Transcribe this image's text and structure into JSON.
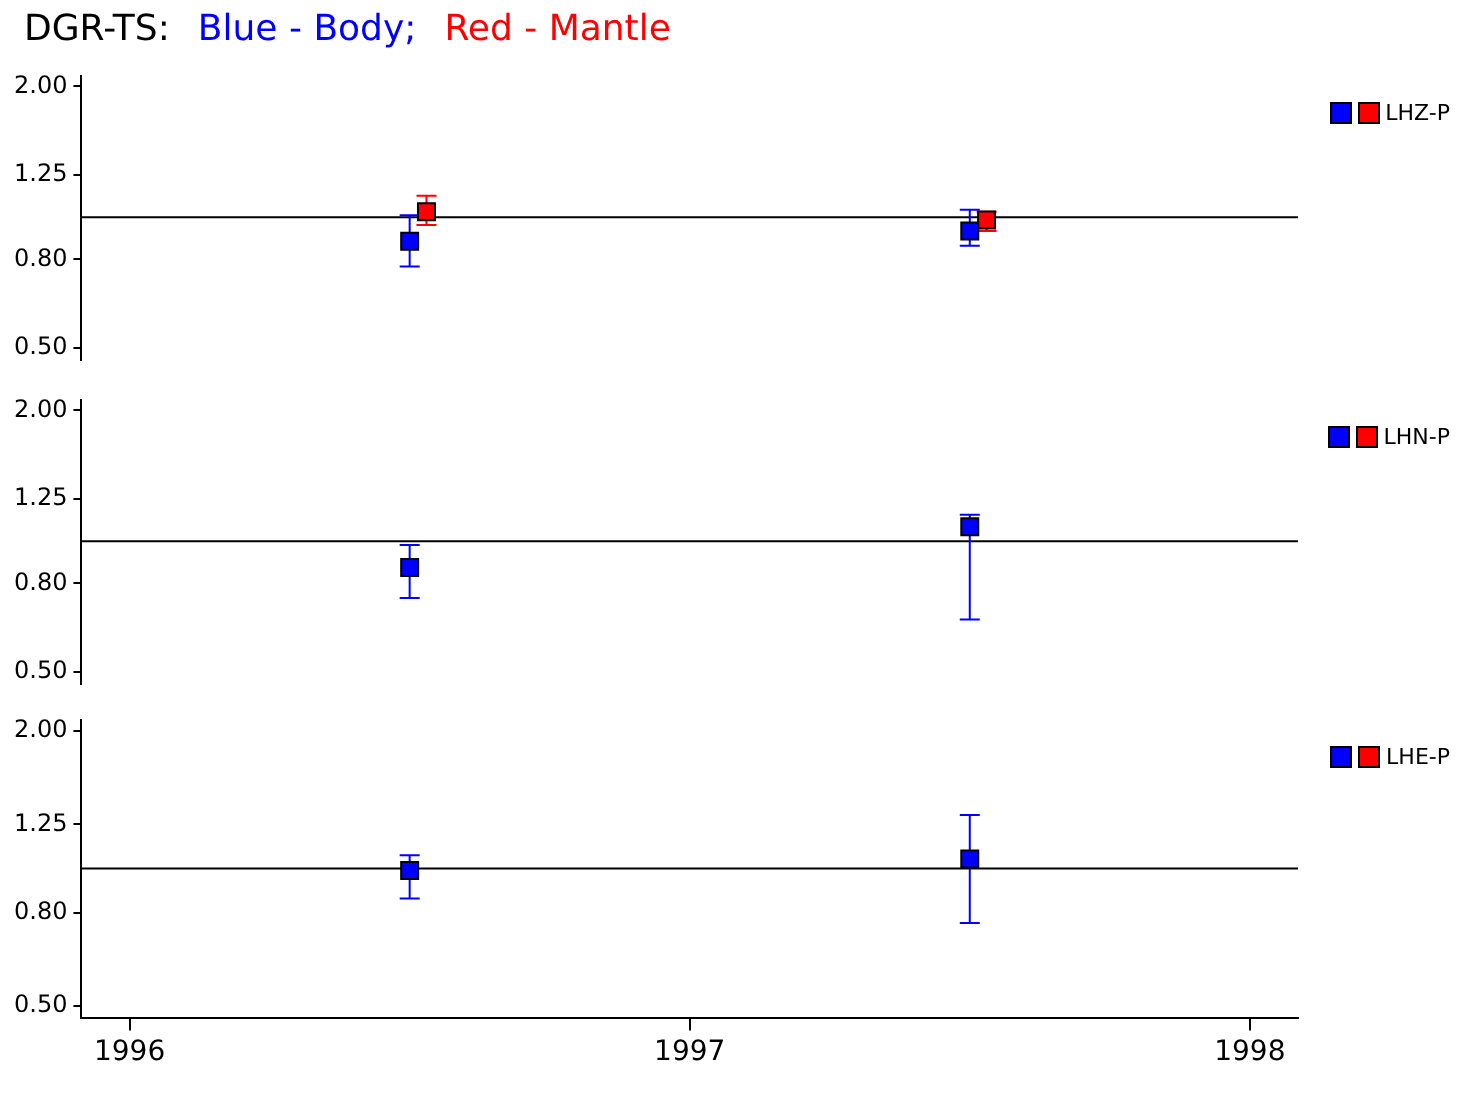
{
  "chart_data": [
    {
      "type": "scatter",
      "title": "DGR-TS:",
      "annotations": [
        "LHZ-P"
      ],
      "marker": "square",
      "log": "y",
      "tick_labels": "y",
      "xlim": [
        1995.914,
        1998.086
      ],
      "xticks": [
        1996,
        1997,
        1998
      ],
      "ylim": [
        0.47,
        2.11
      ],
      "yticks": [
        {
          "value": 0.5,
          "label": "0.50"
        },
        {
          "value": 0.8,
          "label": "0.80"
        },
        {
          "value": 1.25,
          "label": "1.25"
        },
        {
          "value": 2,
          "label": "2.00"
        }
      ],
      "ref_lines": [
        {
          "axis": "y",
          "value": 1,
          "color": "#000000"
        }
      ],
      "series": [
        {
          "name": "Blue - Body;",
          "color": "#0000ff",
          "x": [
            1996.5,
            1997.5
          ],
          "values": [
            0.88,
            0.93
          ],
          "errors": [
            [
              0.77,
              1.01
            ],
            [
              0.86,
              1.04
            ]
          ]
        },
        {
          "name": "Red - Mantle",
          "color": "#ff0000",
          "x": [
            1996.53,
            1997.53
          ],
          "values": [
            1.03,
            0.985
          ],
          "errors": [
            [
              0.96,
              1.12
            ],
            [
              0.93,
              1.03
            ]
          ]
        }
      ]
    },
    {
      "type": "scatter",
      "annotations": [
        "LHN-P"
      ],
      "marker": "square",
      "log": "y",
      "tick_labels": "y",
      "xlim": [
        1995.914,
        1998.086
      ],
      "xticks": [
        1996,
        1997,
        1998
      ],
      "ylim": [
        0.47,
        2.11
      ],
      "yticks": [
        {
          "value": 0.5,
          "label": "0.50"
        },
        {
          "value": 0.8,
          "label": "0.80"
        },
        {
          "value": 1.25,
          "label": "1.25"
        },
        {
          "value": 2,
          "label": "2.00"
        }
      ],
      "ref_lines": [
        {
          "axis": "y",
          "value": 1,
          "color": "#000000"
        }
      ],
      "series": [
        {
          "color": "#0000ff",
          "x": [
            1996.5,
            1997.5
          ],
          "values": [
            0.87,
            1.08
          ],
          "errors": [
            [
              0.74,
              0.98
            ],
            [
              0.66,
              1.15
            ]
          ]
        },
        {
          "color": "#ff0000"
        }
      ]
    },
    {
      "type": "scatter",
      "annotations": [
        "LHE-P"
      ],
      "marker": "square",
      "log": "y",
      "xlim": [
        1995.914,
        1998.086
      ],
      "xticks": [
        1996,
        1997,
        1998
      ],
      "ylim": [
        0.47,
        2.11
      ],
      "yticks": [
        {
          "value": 0.5,
          "label": "0.50"
        },
        {
          "value": 0.8,
          "label": "0.80"
        },
        {
          "value": 1.25,
          "label": "1.25"
        },
        {
          "value": 2,
          "label": "2.00"
        }
      ],
      "ref_lines": [
        {
          "axis": "y",
          "value": 1,
          "color": "#000000"
        }
      ],
      "series": [
        {
          "color": "#0000ff",
          "x": [
            1996.5,
            1997.5
          ],
          "values": [
            0.99,
            1.05
          ],
          "errors": [
            [
              0.86,
              1.07
            ],
            [
              0.76,
              1.31
            ]
          ]
        },
        {
          "color": "#ff0000"
        }
      ]
    }
  ]
}
